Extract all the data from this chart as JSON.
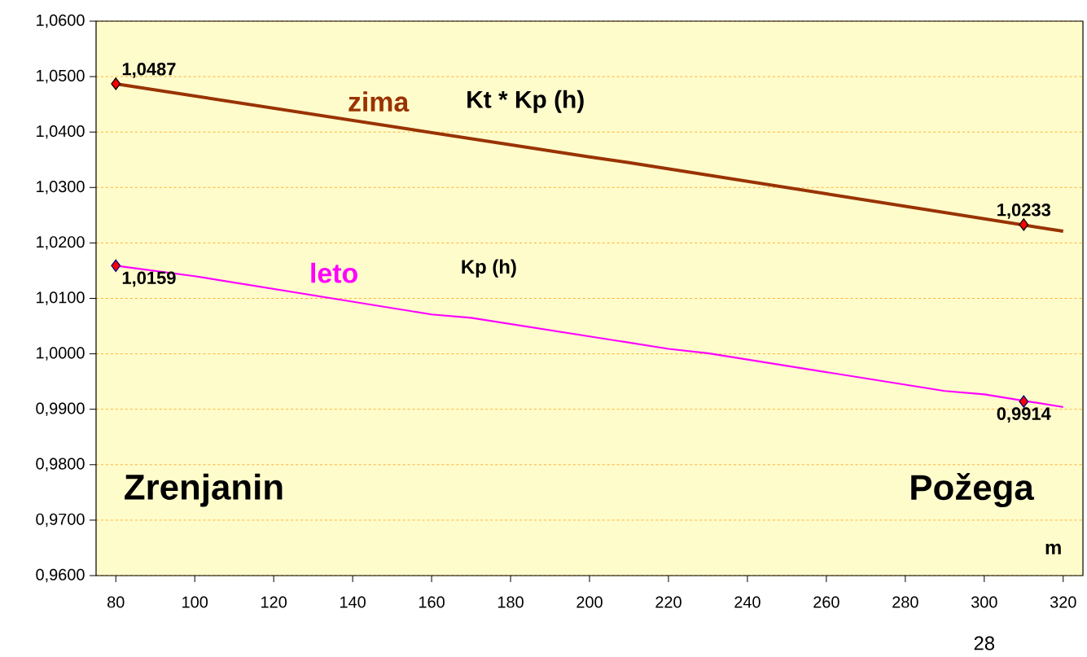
{
  "chart_data": {
    "type": "line",
    "xlabel": "m",
    "xlim": [
      75,
      325
    ],
    "xticks": [
      80,
      100,
      120,
      140,
      160,
      180,
      200,
      220,
      240,
      260,
      280,
      300,
      320
    ],
    "ylim": [
      0.96,
      1.06
    ],
    "yticks": [
      {
        "value": 0.96,
        "label": "0,9600"
      },
      {
        "value": 0.97,
        "label": "0,9700"
      },
      {
        "value": 0.98,
        "label": "0,9800"
      },
      {
        "value": 0.99,
        "label": "0,9900"
      },
      {
        "value": 1.0,
        "label": "1,0000"
      },
      {
        "value": 1.01,
        "label": "1,0100"
      },
      {
        "value": 1.02,
        "label": "1,0200"
      },
      {
        "value": 1.03,
        "label": "1,0300"
      },
      {
        "value": 1.04,
        "label": "1,0400"
      },
      {
        "value": 1.05,
        "label": "1,0500"
      },
      {
        "value": 1.06,
        "label": "1,0600"
      }
    ],
    "grid": "y",
    "line_style": "solid",
    "series": [
      {
        "name": "zima",
        "color": "#993300",
        "x": [
          80,
          200,
          210,
          320
        ],
        "values": [
          1.0487,
          1.0355,
          1.0345,
          1.0221
        ]
      },
      {
        "name": "leto",
        "color": "#ff00ff",
        "x": [
          80,
          100,
          160,
          170,
          220,
          230,
          290,
          300,
          320
        ],
        "values": [
          1.0159,
          1.014,
          1.0071,
          1.0065,
          1.0009,
          1.0001,
          0.9933,
          0.9927,
          0.9904
        ]
      },
      {
        "type": "scatter",
        "marker": "diamond",
        "color": "#ff0000",
        "x": [
          80,
          310
        ],
        "values": [
          1.0487,
          1.0233
        ],
        "value_labels": [
          "1,0487",
          "1,0233"
        ]
      },
      {
        "type": "scatter",
        "marker": "diamond",
        "color": "#ff0000",
        "x": [
          80,
          310
        ],
        "values": [
          1.0159,
          0.9914
        ],
        "value_labels": [
          "1,0159",
          "0,9914"
        ]
      }
    ],
    "annotations": [
      "Kt * Kp (h)",
      "Kp (h)",
      "Zrenjanin",
      "Požega",
      "28"
    ]
  }
}
